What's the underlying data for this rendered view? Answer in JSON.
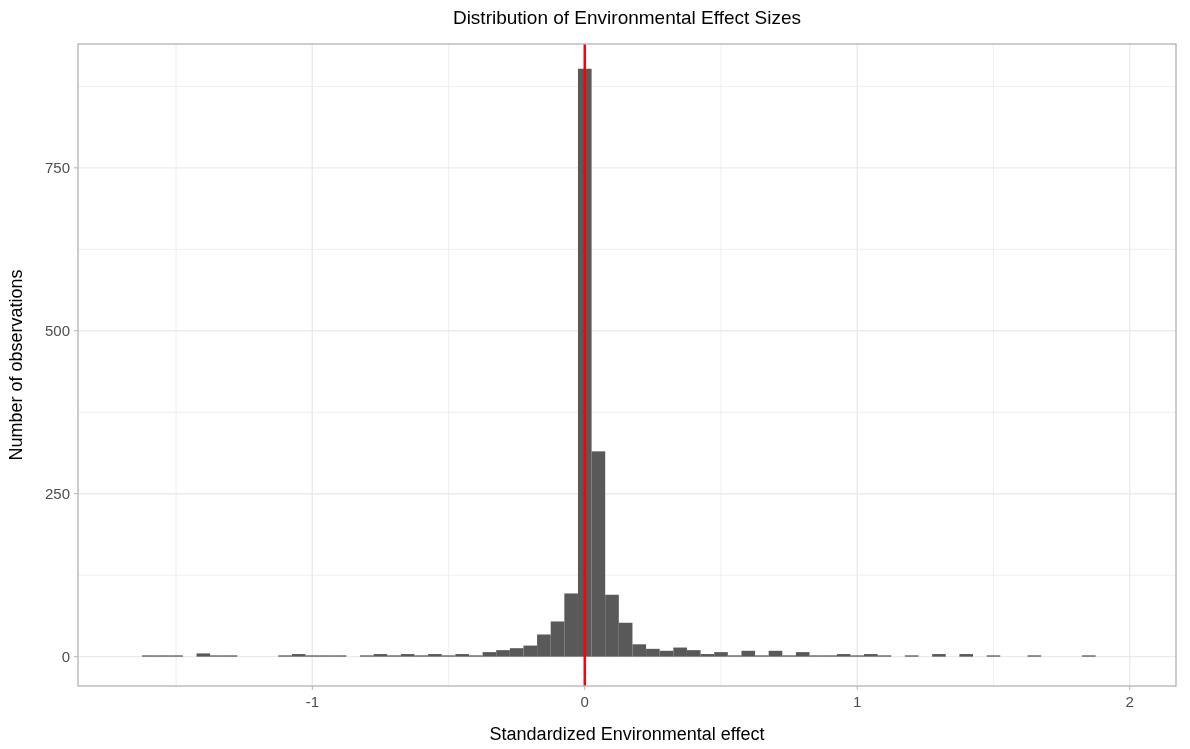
{
  "chart_data": {
    "type": "histogram",
    "title": "Distribution of Environmental Effect Sizes",
    "xlabel": "Standardized Environmental effect",
    "ylabel": "Number of observations",
    "bins": [
      -1.625,
      -1.575,
      -1.525,
      -1.475,
      -1.425,
      -1.375,
      -1.325,
      -1.275,
      -1.225,
      -1.175,
      -1.125,
      -1.075,
      -1.025,
      -0.975,
      -0.925,
      -0.875,
      -0.825,
      -0.775,
      -0.725,
      -0.675,
      -0.625,
      -0.575,
      -0.525,
      -0.475,
      -0.425,
      -0.375,
      -0.325,
      -0.275,
      -0.225,
      -0.175,
      -0.125,
      -0.075,
      -0.025,
      0.025,
      0.075,
      0.125,
      0.175,
      0.225,
      0.275,
      0.325,
      0.375,
      0.425,
      0.475,
      0.525,
      0.575,
      0.625,
      0.675,
      0.725,
      0.775,
      0.825,
      0.875,
      0.925,
      0.975,
      1.025,
      1.075,
      1.125,
      1.175,
      1.225,
      1.275,
      1.325,
      1.375,
      1.425,
      1.475,
      1.525,
      1.575,
      1.625,
      1.675,
      1.725,
      1.775,
      1.825,
      1.875
    ],
    "values": [
      2,
      2,
      2,
      0,
      5,
      2,
      2,
      0,
      0,
      0,
      2,
      4,
      2,
      2,
      2,
      0,
      2,
      4,
      2,
      4,
      2,
      4,
      2,
      4,
      2,
      7,
      10,
      13,
      17,
      34,
      54,
      97,
      902,
      315,
      95,
      52,
      19,
      12,
      9,
      14,
      10,
      4,
      7,
      2,
      9,
      2,
      9,
      2,
      7,
      2,
      2,
      4,
      2,
      4,
      2,
      0,
      2,
      0,
      4,
      0,
      4,
      0,
      2,
      0,
      0,
      2,
      0,
      0,
      0,
      2
    ],
    "color": "#595959",
    "xlim": [
      -1.86,
      2.17
    ],
    "xticks": [
      {
        "value": -1.5,
        "label": null
      },
      -1,
      {
        "value": -0.5,
        "label": null
      },
      0,
      {
        "value": 0.5,
        "label": null
      },
      1,
      {
        "value": 1.5,
        "label": null
      },
      2
    ],
    "ylim": [
      -45,
      940
    ],
    "yticks": [
      0,
      {
        "value": 125,
        "label": null
      },
      250,
      {
        "value": 375,
        "label": null
      },
      500,
      {
        "value": 625,
        "label": null
      },
      750,
      {
        "value": 875,
        "label": null
      }
    ],
    "grid": true,
    "ref_lines": [
      {
        "axis": "x",
        "value": 0,
        "color": "#ff0000"
      }
    ]
  }
}
